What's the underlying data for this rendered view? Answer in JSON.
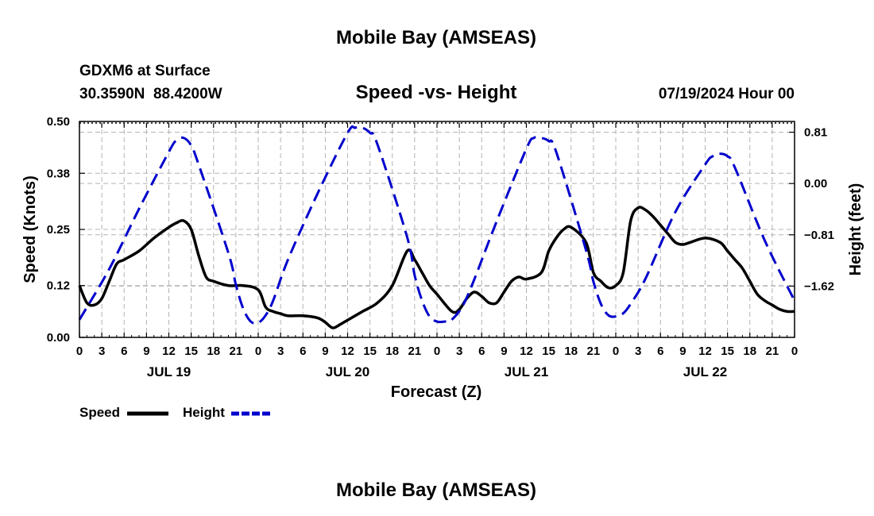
{
  "chart_data": {
    "type": "line",
    "title": "Mobile Bay (AMSEAS)",
    "subtitle": "Speed -vs- Height",
    "station": "GDXM6 at Surface",
    "coords": "30.3590N  88.4200W",
    "run": "07/19/2024 Hour 00",
    "bottom_title": "Mobile Bay (AMSEAS)",
    "xlabel": "Forecast (Z)",
    "ylabel": "Speed (Knots)",
    "y2label": "Height (feet)",
    "xlim": [
      0,
      96
    ],
    "ylim": [
      0,
      0.5
    ],
    "y2lim": [
      -2.43,
      0.98
    ],
    "x_ticks": [
      0,
      3,
      6,
      9,
      12,
      15,
      18,
      21,
      24,
      27,
      30,
      33,
      36,
      39,
      42,
      45,
      48,
      51,
      54,
      57,
      60,
      63,
      66,
      69,
      72,
      75,
      78,
      81,
      84,
      87,
      90,
      93,
      96
    ],
    "x_tick_labels": [
      "0",
      "3",
      "6",
      "9",
      "12",
      "15",
      "18",
      "21",
      "0",
      "3",
      "6",
      "9",
      "12",
      "15",
      "18",
      "21",
      "0",
      "3",
      "6",
      "9",
      "12",
      "15",
      "18",
      "21",
      "0",
      "3",
      "6",
      "9",
      "12",
      "15",
      "18",
      "21",
      "0"
    ],
    "day_labels": [
      {
        "x": 12,
        "label": "JUL 19"
      },
      {
        "x": 36,
        "label": "JUL 20"
      },
      {
        "x": 60,
        "label": "JUL 21"
      },
      {
        "x": 84,
        "label": "JUL 22"
      }
    ],
    "y_ticks": [
      0.0,
      0.12,
      0.25,
      0.38,
      0.5
    ],
    "y_tick_labels": [
      "0.00",
      "0.12",
      "0.25",
      "0.38",
      "0.50"
    ],
    "y2_ticks": [
      0.81,
      0.0,
      -0.81,
      -1.62
    ],
    "y2_tick_labels": [
      "0.81",
      "0.00",
      "−0.81",
      "−1.62"
    ],
    "series": [
      {
        "name": "Speed",
        "axis": "left",
        "color": "#000000",
        "style": "solid",
        "x": [
          0,
          1,
          2,
          3,
          4,
          5,
          6,
          8,
          10,
          12,
          13,
          14,
          15,
          16,
          17,
          18,
          20,
          22,
          24,
          25,
          26,
          27,
          28,
          30,
          32,
          33,
          34,
          35,
          36,
          38,
          40,
          42,
          44,
          45,
          46,
          47,
          48,
          50,
          51,
          52,
          53,
          54,
          55,
          56,
          57,
          58,
          59,
          60,
          62,
          63,
          64,
          65,
          66,
          68,
          69,
          70,
          71,
          72,
          73,
          74,
          75,
          76,
          77,
          78,
          79,
          80,
          81,
          82,
          84,
          86,
          87,
          88,
          89,
          90,
          91,
          92,
          93,
          94,
          95,
          96
        ],
        "values": [
          0.12,
          0.08,
          0.075,
          0.09,
          0.13,
          0.17,
          0.18,
          0.2,
          0.23,
          0.255,
          0.265,
          0.27,
          0.25,
          0.19,
          0.14,
          0.13,
          0.12,
          0.12,
          0.11,
          0.07,
          0.06,
          0.055,
          0.05,
          0.05,
          0.045,
          0.035,
          0.022,
          0.03,
          0.04,
          0.06,
          0.08,
          0.12,
          0.2,
          0.18,
          0.15,
          0.12,
          0.1,
          0.06,
          0.065,
          0.09,
          0.105,
          0.095,
          0.08,
          0.08,
          0.105,
          0.13,
          0.14,
          0.135,
          0.15,
          0.2,
          0.23,
          0.25,
          0.255,
          0.22,
          0.15,
          0.13,
          0.115,
          0.12,
          0.15,
          0.27,
          0.3,
          0.295,
          0.28,
          0.26,
          0.24,
          0.22,
          0.215,
          0.22,
          0.23,
          0.22,
          0.2,
          0.18,
          0.16,
          0.13,
          0.1,
          0.085,
          0.075,
          0.065,
          0.06,
          0.06
        ]
      },
      {
        "name": "Height",
        "axis": "right",
        "color": "#0000cc",
        "style": "dashed",
        "x": [
          0,
          4,
          8,
          12,
          13,
          14,
          15,
          16,
          20,
          21,
          22,
          23,
          24,
          25,
          26,
          28,
          32,
          36,
          37,
          38,
          39,
          40,
          44,
          45,
          46,
          47,
          48,
          49,
          50,
          52,
          56,
          60,
          61,
          62,
          63,
          64,
          68,
          69,
          70,
          71,
          72,
          73,
          74,
          76,
          80,
          84,
          85,
          86,
          87,
          88,
          92,
          96
        ],
        "values": [
          -2.15,
          -1.35,
          -0.4,
          0.5,
          0.68,
          0.72,
          0.6,
          0.3,
          -1.1,
          -1.6,
          -1.98,
          -2.18,
          -2.2,
          -2.08,
          -1.85,
          -1.2,
          -0.15,
          0.8,
          0.88,
          0.88,
          0.8,
          0.62,
          -0.85,
          -1.45,
          -1.85,
          -2.1,
          -2.18,
          -2.18,
          -2.15,
          -1.8,
          -0.6,
          0.55,
          0.72,
          0.72,
          0.67,
          0.5,
          -1.05,
          -1.55,
          -1.9,
          -2.08,
          -2.1,
          -2.05,
          -1.9,
          -1.5,
          -0.45,
          0.3,
          0.43,
          0.47,
          0.43,
          0.25,
          -0.9,
          -1.85
        ]
      }
    ],
    "legend": {
      "placement": "bottom-left",
      "entries": [
        {
          "label": "Speed",
          "color": "#000000",
          "style": "solid"
        },
        {
          "label": "Height",
          "color": "#0000cc",
          "style": "dashed"
        }
      ]
    },
    "grid": true
  }
}
